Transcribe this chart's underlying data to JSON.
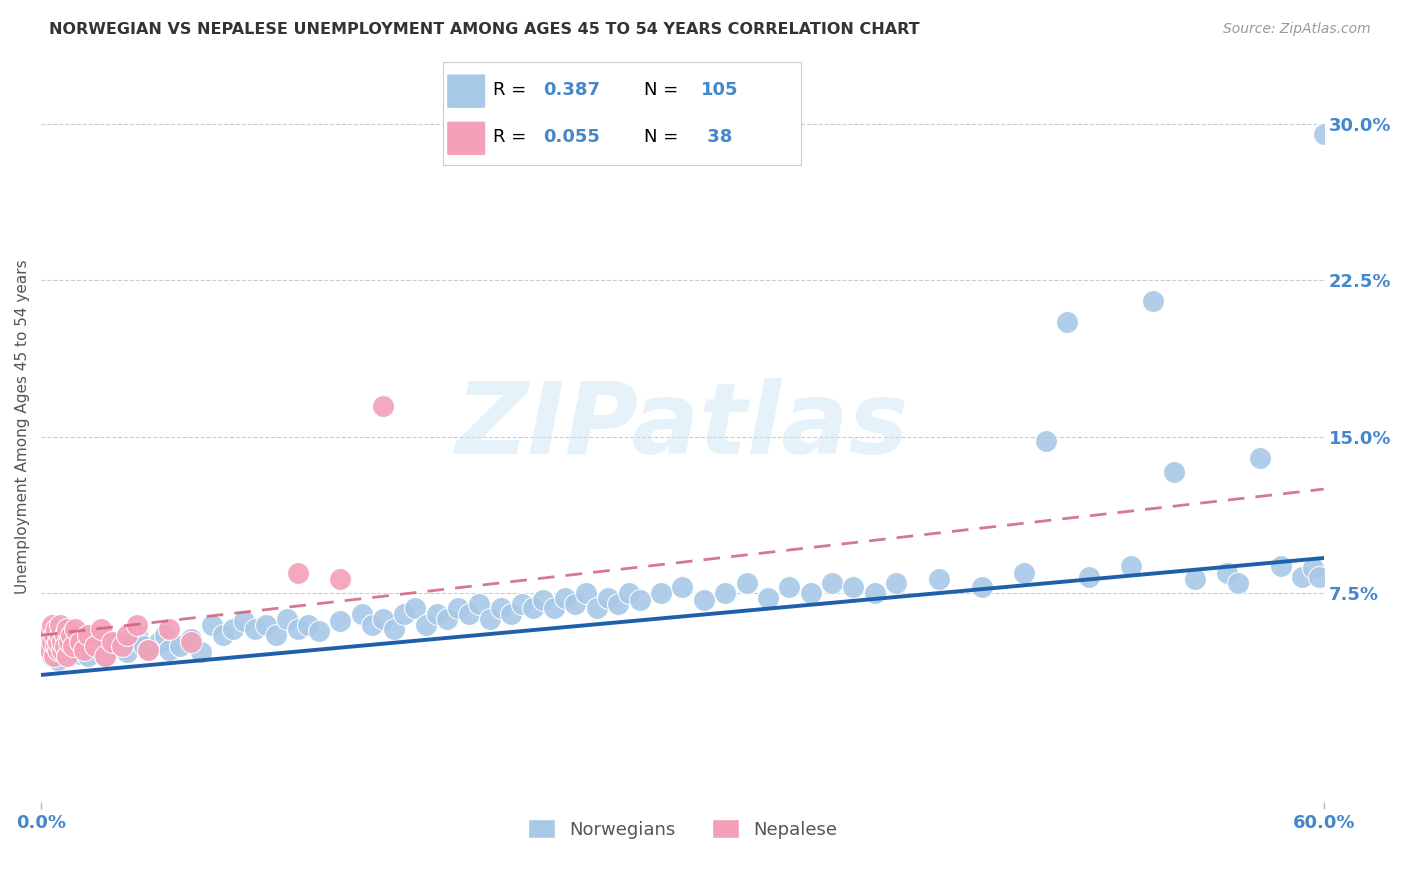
{
  "title": "NORWEGIAN VS NEPALESE UNEMPLOYMENT AMONG AGES 45 TO 54 YEARS CORRELATION CHART",
  "source": "Source: ZipAtlas.com",
  "xlim": [
    0.0,
    0.6
  ],
  "ylim": [
    -0.025,
    0.335
  ],
  "ytick_vals": [
    0.075,
    0.15,
    0.225,
    0.3
  ],
  "ytick_labels": [
    "7.5%",
    "15.0%",
    "22.5%",
    "30.0%"
  ],
  "xtick_vals": [
    0.0,
    0.6
  ],
  "xtick_labels": [
    "0.0%",
    "60.0%"
  ],
  "norwegian_R": 0.387,
  "norwegian_N": 105,
  "nepalese_R": 0.055,
  "nepalese_N": 38,
  "norwegian_color": "#a8c8e8",
  "norwegian_line_color": "#2060a8",
  "nepalese_color": "#f4a0b8",
  "nepalese_line_color": "#d06080",
  "legend_norwegian_label": "Norwegians",
  "legend_nepalese_label": "Nepalese",
  "watermark": "ZIPatlas",
  "background_color": "#ffffff",
  "grid_color": "#cccccc",
  "title_color": "#333333",
  "source_color": "#999999",
  "axis_label_color": "#4488cc",
  "ylabel": "Unemployment Among Ages 45 to 54 years",
  "nor_x": [
    0.003,
    0.005,
    0.006,
    0.007,
    0.008,
    0.009,
    0.01,
    0.011,
    0.012,
    0.013,
    0.014,
    0.015,
    0.016,
    0.017,
    0.018,
    0.019,
    0.02,
    0.021,
    0.022,
    0.025,
    0.027,
    0.03,
    0.032,
    0.035,
    0.038,
    0.04,
    0.042,
    0.045,
    0.048,
    0.05,
    0.055,
    0.058,
    0.06,
    0.065,
    0.07,
    0.075,
    0.08,
    0.085,
    0.09,
    0.095,
    0.1,
    0.105,
    0.11,
    0.115,
    0.12,
    0.125,
    0.13,
    0.14,
    0.15,
    0.155,
    0.16,
    0.165,
    0.17,
    0.175,
    0.18,
    0.185,
    0.19,
    0.195,
    0.2,
    0.205,
    0.21,
    0.215,
    0.22,
    0.225,
    0.23,
    0.235,
    0.24,
    0.245,
    0.25,
    0.255,
    0.26,
    0.265,
    0.27,
    0.275,
    0.28,
    0.29,
    0.3,
    0.31,
    0.32,
    0.33,
    0.34,
    0.35,
    0.36,
    0.37,
    0.38,
    0.39,
    0.4,
    0.42,
    0.44,
    0.46,
    0.47,
    0.48,
    0.49,
    0.51,
    0.52,
    0.53,
    0.54,
    0.555,
    0.56,
    0.57,
    0.58,
    0.59,
    0.595,
    0.598,
    0.6
  ],
  "nor_y": [
    0.05,
    0.045,
    0.048,
    0.052,
    0.043,
    0.047,
    0.055,
    0.05,
    0.048,
    0.053,
    0.046,
    0.051,
    0.049,
    0.054,
    0.046,
    0.05,
    0.052,
    0.048,
    0.045,
    0.055,
    0.05,
    0.045,
    0.048,
    0.052,
    0.05,
    0.047,
    0.053,
    0.055,
    0.05,
    0.048,
    0.052,
    0.055,
    0.048,
    0.05,
    0.053,
    0.047,
    0.06,
    0.055,
    0.058,
    0.062,
    0.058,
    0.06,
    0.055,
    0.063,
    0.058,
    0.06,
    0.057,
    0.062,
    0.065,
    0.06,
    0.063,
    0.058,
    0.065,
    0.068,
    0.06,
    0.065,
    0.063,
    0.068,
    0.065,
    0.07,
    0.063,
    0.068,
    0.065,
    0.07,
    0.068,
    0.072,
    0.068,
    0.073,
    0.07,
    0.075,
    0.068,
    0.073,
    0.07,
    0.075,
    0.072,
    0.075,
    0.078,
    0.072,
    0.075,
    0.08,
    0.073,
    0.078,
    0.075,
    0.08,
    0.078,
    0.075,
    0.08,
    0.082,
    0.078,
    0.085,
    0.148,
    0.205,
    0.083,
    0.088,
    0.215,
    0.133,
    0.082,
    0.085,
    0.08,
    0.14,
    0.088,
    0.083,
    0.087,
    0.083,
    0.295
  ],
  "nep_x": [
    0.003,
    0.004,
    0.005,
    0.005,
    0.006,
    0.006,
    0.007,
    0.007,
    0.008,
    0.008,
    0.009,
    0.009,
    0.01,
    0.01,
    0.011,
    0.011,
    0.012,
    0.012,
    0.013,
    0.014,
    0.015,
    0.016,
    0.018,
    0.02,
    0.022,
    0.025,
    0.028,
    0.03,
    0.033,
    0.038,
    0.04,
    0.045,
    0.05,
    0.06,
    0.07,
    0.12,
    0.14,
    0.16
  ],
  "nep_y": [
    0.055,
    0.048,
    0.052,
    0.06,
    0.045,
    0.055,
    0.05,
    0.058,
    0.048,
    0.052,
    0.055,
    0.06,
    0.048,
    0.052,
    0.055,
    0.05,
    0.058,
    0.045,
    0.052,
    0.055,
    0.05,
    0.058,
    0.052,
    0.048,
    0.055,
    0.05,
    0.058,
    0.045,
    0.052,
    0.05,
    0.055,
    0.06,
    0.048,
    0.058,
    0.052,
    0.085,
    0.082,
    0.165
  ]
}
